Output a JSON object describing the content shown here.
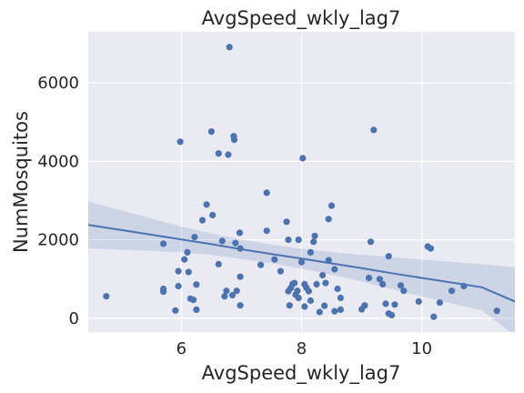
{
  "chart_data": {
    "type": "scatter",
    "title": "AvgSpeed_wkly_lag7",
    "xlabel": "AvgSpeed_wkly_lag7",
    "ylabel": "NumMosquitos",
    "xlim": [
      4.45,
      11.55
    ],
    "ylim": [
      -350,
      7300
    ],
    "xticks": [
      6,
      8,
      10
    ],
    "yticks": [
      0,
      2000,
      4000,
      6000
    ],
    "grid": true,
    "colors": {
      "point": "#4c72b0",
      "line": "#4c72b0",
      "band": "#4c72b0",
      "background": "#eaeaf2",
      "grid": "#ffffff"
    },
    "regression": {
      "x": [
        4.45,
        5.0,
        5.5,
        6.0,
        6.5,
        7.0,
        7.5,
        8.0,
        8.5,
        9.0,
        9.5,
        10.0,
        10.5,
        11.0,
        11.55
      ],
      "y": [
        2380,
        2250,
        2130,
        2010,
        1890,
        1760,
        1640,
        1520,
        1400,
        1280,
        1150,
        1030,
        910,
        790,
        430
      ],
      "ci_upper": [
        2980,
        2750,
        2540,
        2340,
        2160,
        2010,
        1880,
        1770,
        1690,
        1620,
        1560,
        1500,
        1440,
        1380,
        1300
      ],
      "ci_lower": [
        1780,
        1750,
        1720,
        1680,
        1620,
        1510,
        1400,
        1270,
        1110,
        940,
        740,
        560,
        380,
        200,
        -440
      ]
    },
    "points": [
      {
        "x": 4.75,
        "y": 560
      },
      {
        "x": 5.7,
        "y": 1900
      },
      {
        "x": 5.7,
        "y": 750
      },
      {
        "x": 5.7,
        "y": 680
      },
      {
        "x": 5.9,
        "y": 200
      },
      {
        "x": 5.95,
        "y": 1200
      },
      {
        "x": 5.95,
        "y": 820
      },
      {
        "x": 5.98,
        "y": 4500
      },
      {
        "x": 6.05,
        "y": 1500
      },
      {
        "x": 6.1,
        "y": 1680
      },
      {
        "x": 6.12,
        "y": 1180
      },
      {
        "x": 6.15,
        "y": 500
      },
      {
        "x": 6.2,
        "y": 470
      },
      {
        "x": 6.22,
        "y": 2070
      },
      {
        "x": 6.25,
        "y": 860
      },
      {
        "x": 6.25,
        "y": 220
      },
      {
        "x": 6.35,
        "y": 2500
      },
      {
        "x": 6.42,
        "y": 2900
      },
      {
        "x": 6.5,
        "y": 4760
      },
      {
        "x": 6.52,
        "y": 2630
      },
      {
        "x": 6.62,
        "y": 4200
      },
      {
        "x": 6.62,
        "y": 1380
      },
      {
        "x": 6.68,
        "y": 1970
      },
      {
        "x": 6.72,
        "y": 560
      },
      {
        "x": 6.75,
        "y": 700
      },
      {
        "x": 6.78,
        "y": 4170
      },
      {
        "x": 6.8,
        "y": 6910
      },
      {
        "x": 6.85,
        "y": 590
      },
      {
        "x": 6.87,
        "y": 4640
      },
      {
        "x": 6.88,
        "y": 4550
      },
      {
        "x": 6.9,
        "y": 1920
      },
      {
        "x": 6.92,
        "y": 700
      },
      {
        "x": 6.97,
        "y": 2180
      },
      {
        "x": 6.98,
        "y": 1780
      },
      {
        "x": 6.98,
        "y": 1060
      },
      {
        "x": 6.98,
        "y": 330
      },
      {
        "x": 7.32,
        "y": 1360
      },
      {
        "x": 7.42,
        "y": 3200
      },
      {
        "x": 7.42,
        "y": 2230
      },
      {
        "x": 7.55,
        "y": 1500
      },
      {
        "x": 7.65,
        "y": 1200
      },
      {
        "x": 7.75,
        "y": 2460
      },
      {
        "x": 7.78,
        "y": 2000
      },
      {
        "x": 7.78,
        "y": 690
      },
      {
        "x": 7.8,
        "y": 330
      },
      {
        "x": 7.82,
        "y": 770
      },
      {
        "x": 7.85,
        "y": 870
      },
      {
        "x": 7.88,
        "y": 900
      },
      {
        "x": 7.9,
        "y": 600
      },
      {
        "x": 7.93,
        "y": 700
      },
      {
        "x": 7.95,
        "y": 520
      },
      {
        "x": 7.95,
        "y": 2000
      },
      {
        "x": 8.0,
        "y": 1430
      },
      {
        "x": 8.02,
        "y": 4080
      },
      {
        "x": 8.05,
        "y": 870
      },
      {
        "x": 8.05,
        "y": 300
      },
      {
        "x": 8.08,
        "y": 780
      },
      {
        "x": 8.12,
        "y": 690
      },
      {
        "x": 8.15,
        "y": 1680
      },
      {
        "x": 8.15,
        "y": 450
      },
      {
        "x": 8.2,
        "y": 1950
      },
      {
        "x": 8.22,
        "y": 2100
      },
      {
        "x": 8.25,
        "y": 870
      },
      {
        "x": 8.3,
        "y": 160
      },
      {
        "x": 8.35,
        "y": 1100
      },
      {
        "x": 8.38,
        "y": 320
      },
      {
        "x": 8.4,
        "y": 900
      },
      {
        "x": 8.45,
        "y": 2530
      },
      {
        "x": 8.45,
        "y": 1480
      },
      {
        "x": 8.5,
        "y": 2870
      },
      {
        "x": 8.55,
        "y": 1250
      },
      {
        "x": 8.55,
        "y": 180
      },
      {
        "x": 8.6,
        "y": 750
      },
      {
        "x": 8.65,
        "y": 520
      },
      {
        "x": 8.65,
        "y": 220
      },
      {
        "x": 9.0,
        "y": 230
      },
      {
        "x": 9.05,
        "y": 330
      },
      {
        "x": 9.12,
        "y": 1030
      },
      {
        "x": 9.15,
        "y": 1950
      },
      {
        "x": 9.2,
        "y": 4800
      },
      {
        "x": 9.3,
        "y": 1000
      },
      {
        "x": 9.35,
        "y": 870
      },
      {
        "x": 9.4,
        "y": 370
      },
      {
        "x": 9.45,
        "y": 1580
      },
      {
        "x": 9.45,
        "y": 120
      },
      {
        "x": 9.5,
        "y": 80
      },
      {
        "x": 9.55,
        "y": 350
      },
      {
        "x": 9.65,
        "y": 840
      },
      {
        "x": 9.7,
        "y": 700
      },
      {
        "x": 9.95,
        "y": 430
      },
      {
        "x": 10.1,
        "y": 1830
      },
      {
        "x": 10.15,
        "y": 1780
      },
      {
        "x": 10.2,
        "y": 40
      },
      {
        "x": 10.3,
        "y": 400
      },
      {
        "x": 10.5,
        "y": 700
      },
      {
        "x": 10.7,
        "y": 820
      },
      {
        "x": 11.25,
        "y": 190
      }
    ]
  }
}
